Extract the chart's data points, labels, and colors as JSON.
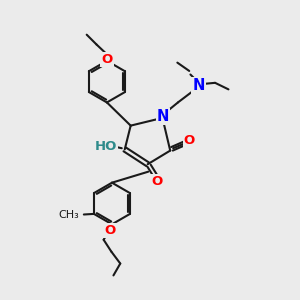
{
  "bg": "#ebebeb",
  "C": "#1a1a1a",
  "N": "#0000ff",
  "O": "#ff0000",
  "HO": "#2e8b8b",
  "lw": 1.5,
  "fs": 9.5,
  "fs_sm": 8.5
}
